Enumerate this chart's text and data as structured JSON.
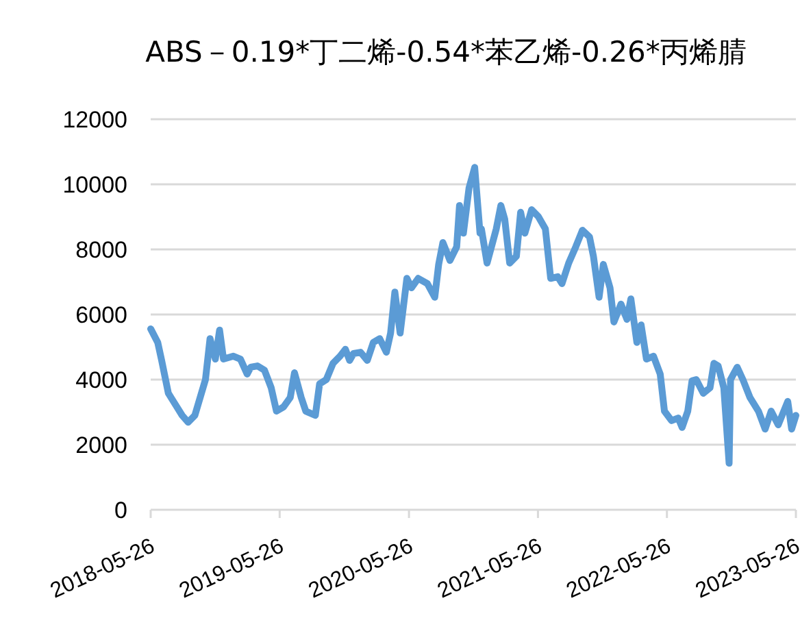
{
  "chart_data": {
    "type": "line",
    "title": "ABS－0.19*丁二烯-0.54*苯乙烯-0.26*丙烯腈",
    "xlim": [
      "2018-05-26",
      "2023-05-26"
    ],
    "xticks": [
      "2018-05-26",
      "2019-05-26",
      "2020-05-26",
      "2021-05-26",
      "2022-05-26",
      "2023-05-26"
    ],
    "ylim": [
      0,
      12000
    ],
    "yticks": [
      0,
      2000,
      4000,
      6000,
      8000,
      10000,
      12000
    ],
    "grid": "y",
    "marker": "none",
    "line_style": "solid",
    "series": [
      {
        "color": "#5b9bd5",
        "x": [
          "2018-05-26",
          "2018-06-15",
          "2018-06-26",
          "2018-07-15",
          "2018-08-23",
          "2018-09-09",
          "2018-09-28",
          "2018-10-28",
          "2018-11-10",
          "2018-11-25",
          "2018-12-07",
          "2018-12-18",
          "2019-01-15",
          "2019-02-04",
          "2019-02-23",
          "2019-03-05",
          "2019-03-24",
          "2019-04-13",
          "2019-05-02",
          "2019-05-17",
          "2019-06-06",
          "2019-06-25",
          "2019-07-07",
          "2019-07-26",
          "2019-08-08",
          "2019-09-04",
          "2019-09-16",
          "2019-10-05",
          "2019-10-24",
          "2019-11-13",
          "2019-11-28",
          "2019-12-10",
          "2019-12-21",
          "2020-01-10",
          "2020-01-29",
          "2020-02-15",
          "2020-03-04",
          "2020-03-23",
          "2020-04-04",
          "2020-04-16",
          "2020-05-01",
          "2020-05-20",
          "2020-06-02",
          "2020-06-21",
          "2020-07-17",
          "2020-08-07",
          "2020-08-18",
          "2020-08-30",
          "2020-09-19",
          "2020-10-08",
          "2020-10-16",
          "2020-10-27",
          "2020-11-12",
          "2020-11-28",
          "2020-12-13",
          "2020-12-17",
          "2021-01-02",
          "2021-01-28",
          "2021-02-10",
          "2021-02-21",
          "2021-03-07",
          "2021-03-26",
          "2021-04-07",
          "2021-04-19",
          "2021-05-08",
          "2021-05-27",
          "2021-06-16",
          "2021-07-01",
          "2021-07-21",
          "2021-08-02",
          "2021-08-21",
          "2021-09-10",
          "2021-09-29",
          "2021-10-19",
          "2021-10-30",
          "2021-11-15",
          "2021-11-27",
          "2021-12-16",
          "2021-12-27",
          "2022-01-16",
          "2022-02-02",
          "2022-02-13",
          "2022-03-02",
          "2022-03-14",
          "2022-03-29",
          "2022-04-18",
          "2022-05-07",
          "2022-05-19",
          "2022-06-08",
          "2022-06-27",
          "2022-07-08",
          "2022-07-24",
          "2022-08-05",
          "2022-08-17",
          "2022-09-06",
          "2022-09-25",
          "2022-10-06",
          "2022-10-18",
          "2022-11-03",
          "2022-11-18",
          "2022-11-22",
          "2022-12-11",
          "2022-12-27",
          "2023-01-16",
          "2023-02-09",
          "2023-02-28",
          "2023-03-17",
          "2023-04-06",
          "2023-05-03",
          "2023-05-14",
          "2023-05-26"
        ],
        "values": [
          5560,
          5140,
          4590,
          3580,
          2900,
          2690,
          2900,
          4000,
          5260,
          4630,
          5520,
          4630,
          4720,
          4630,
          4170,
          4380,
          4420,
          4290,
          3750,
          3030,
          3160,
          3450,
          4210,
          3450,
          3030,
          2900,
          3870,
          4000,
          4500,
          4720,
          4930,
          4590,
          4800,
          4840,
          4590,
          5140,
          5260,
          4840,
          5430,
          6690,
          5430,
          7110,
          6820,
          7110,
          6950,
          6530,
          7540,
          8210,
          7660,
          8080,
          9350,
          8500,
          9890,
          10520,
          8500,
          8630,
          7580,
          8630,
          9350,
          8930,
          7580,
          7790,
          9140,
          8500,
          9220,
          9010,
          8630,
          7110,
          7160,
          6950,
          7580,
          8080,
          8590,
          8380,
          7790,
          6530,
          7540,
          6820,
          5770,
          6320,
          5850,
          6480,
          5140,
          5680,
          4630,
          4720,
          4170,
          3030,
          2740,
          2820,
          2530,
          3030,
          3960,
          4000,
          3580,
          3750,
          4500,
          4420,
          3750,
          1430,
          4000,
          4380,
          4000,
          3450,
          3030,
          2480,
          3030,
          2610,
          3330,
          2480,
          2900
        ]
      }
    ]
  }
}
